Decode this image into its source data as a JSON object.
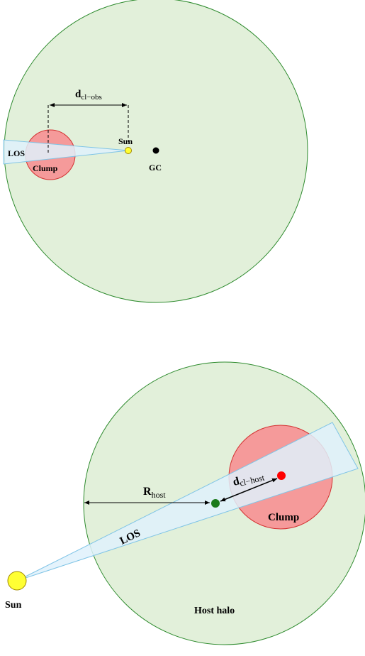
{
  "top_diagram": {
    "los_label": "LOS",
    "clump_label": "Clump",
    "sun_label": "Sun",
    "gc_label": "GC",
    "distance_label": {
      "main": "d",
      "sub": "cl−obs"
    }
  },
  "bottom_diagram": {
    "los_label": "LOS",
    "clump_label": "Clump",
    "sun_label": "Sun",
    "host_halo_label": "Host halo",
    "radius_label": {
      "main": "R",
      "sub": "host"
    },
    "distance_label": {
      "main": "d",
      "sub": "cl−host"
    }
  },
  "colors": {
    "halo_fill": "#e2f0da",
    "halo_stroke": "#2e8b2e",
    "clump_fill": "#f59a9a",
    "clump_stroke": "#d43030",
    "los_fill": "#dff1fb",
    "los_stroke": "#7fc4e6",
    "sun_fill": "#ffff33",
    "sun_stroke": "#a08800",
    "clump_center": "#ff0000",
    "host_center": "#1a7a1a",
    "gc_dot": "#000000"
  }
}
